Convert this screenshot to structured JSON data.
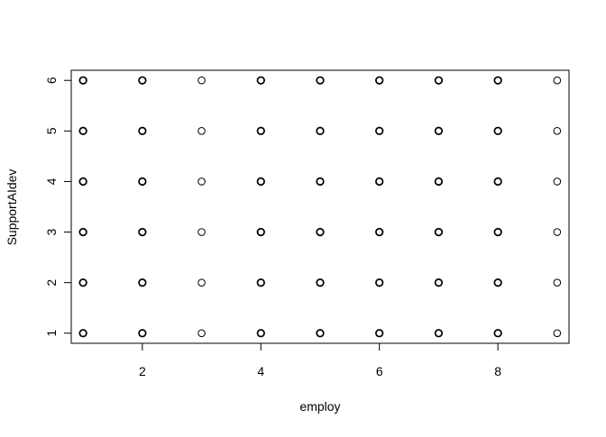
{
  "chart_data": {
    "type": "scatter",
    "title": "",
    "xlabel": "employ",
    "ylabel": "SupportAIdev",
    "xlim": [
      0.8,
      9.2
    ],
    "ylim": [
      0.8,
      6.2
    ],
    "x_ticks": [
      2,
      4,
      6,
      8
    ],
    "y_ticks": [
      1,
      2,
      3,
      4,
      5,
      6
    ],
    "x": [
      1,
      1,
      1,
      1,
      1,
      1,
      2,
      2,
      2,
      2,
      2,
      2,
      3,
      3,
      3,
      3,
      3,
      3,
      4,
      4,
      4,
      4,
      4,
      4,
      5,
      5,
      5,
      5,
      5,
      5,
      6,
      6,
      6,
      6,
      6,
      6,
      7,
      7,
      7,
      7,
      7,
      7,
      8,
      8,
      8,
      8,
      8,
      8,
      9,
      9,
      9,
      9,
      9,
      9
    ],
    "y": [
      1,
      2,
      3,
      4,
      5,
      6,
      1,
      2,
      3,
      4,
      5,
      6,
      1,
      2,
      3,
      4,
      5,
      6,
      1,
      2,
      3,
      4,
      5,
      6,
      1,
      2,
      3,
      4,
      5,
      6,
      1,
      2,
      3,
      4,
      5,
      6,
      1,
      2,
      3,
      4,
      5,
      6,
      1,
      2,
      3,
      4,
      5,
      6,
      1,
      2,
      3,
      4,
      5,
      6
    ],
    "marker": "open-circle",
    "marker_color": "#000000",
    "grid": false,
    "legend": "none"
  }
}
